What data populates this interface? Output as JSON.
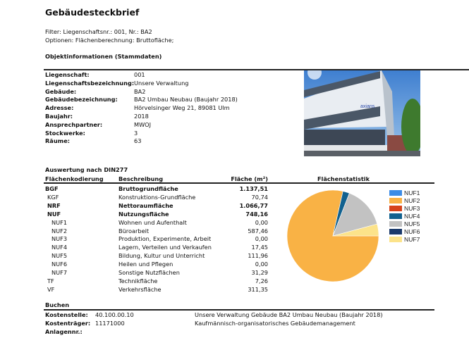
{
  "title": "Gebäudesteckbrief",
  "filter": "Filter: Liegenschaftsnr.: 001, Nr.: BA2",
  "options": "Optionen: Flächenberechnung: Bruttofläche;",
  "object_info": {
    "heading": "Objektinformationen (Stammdaten)",
    "rows": [
      {
        "label": "Liegenschaft:",
        "value": "001"
      },
      {
        "label": "Liegenschaftsbezeichnung:",
        "value": "Unsere Verwaltung"
      },
      {
        "label": "Gebäude:",
        "value": "BA2"
      },
      {
        "label": "Gebäudebezeichnung:",
        "value": "BA2 Umbau Neubau (Baujahr 2018)"
      },
      {
        "label": "Adresse:",
        "value": "Hörvelsinger Weg  21, 89081 Ulm"
      },
      {
        "label": "Baujahr:",
        "value": "2018"
      },
      {
        "label": "Ansprechpartner:",
        "value": "MWOJ"
      },
      {
        "label": "Stockwerke:",
        "value": "3"
      },
      {
        "label": "Räume:",
        "value": "63"
      }
    ],
    "photo_logo_text": "axians"
  },
  "evaluation": {
    "heading": "Auswertung nach DIN277",
    "columns": [
      "Flächenkodierung",
      "Beschreibung",
      "Fläche (m²)"
    ],
    "rows": [
      {
        "code": "BGF",
        "desc": "Bruttogrundfläche",
        "value": "1.137,51",
        "bold": true,
        "indent": 0
      },
      {
        "code": "KGF",
        "desc": "Konstruktions-Grundfläche",
        "value": "70,74",
        "bold": false,
        "indent": 1
      },
      {
        "code": "NRF",
        "desc": "Nettoraumfläche",
        "value": "1.066,77",
        "bold": true,
        "indent": 1
      },
      {
        "code": "NUF",
        "desc": "Nutzungsfläche",
        "value": "748,16",
        "bold": true,
        "indent": 2
      },
      {
        "code": "NUF1",
        "desc": "Wohnen und Aufenthalt",
        "value": "0,00",
        "bold": false,
        "indent": 3
      },
      {
        "code": "NUF2",
        "desc": "Büroarbeit",
        "value": "587,46",
        "bold": false,
        "indent": 3
      },
      {
        "code": "NUF3",
        "desc": "Produktion, Experimente, Arbeit",
        "value": "0,00",
        "bold": false,
        "indent": 3
      },
      {
        "code": "NUF4",
        "desc": "Lagern, Verteilen und Verkaufen",
        "value": "17,45",
        "bold": false,
        "indent": 3
      },
      {
        "code": "NUF5",
        "desc": "Bildung, Kultur und Unterricht",
        "value": "111,96",
        "bold": false,
        "indent": 3
      },
      {
        "code": "NUF6",
        "desc": "Heilen und Pflegen",
        "value": "0,00",
        "bold": false,
        "indent": 3
      },
      {
        "code": "NUF7",
        "desc": "Sonstige Nutzflächen",
        "value": "31,29",
        "bold": false,
        "indent": 3
      },
      {
        "code": "TF",
        "desc": "Technikfläche",
        "value": "7,26",
        "bold": false,
        "indent": 1
      },
      {
        "code": "VF",
        "desc": "Verkehrsfläche",
        "value": "311,35",
        "bold": false,
        "indent": 1
      }
    ]
  },
  "chart_data": {
    "type": "pie",
    "title": "Flächenstatistik",
    "legend_position": "right",
    "start": "3 o'clock, clockwise",
    "slices": [
      {
        "name": "NUF1",
        "value": 0.0,
        "color": "#3c8ce6"
      },
      {
        "name": "NUF2",
        "value": 587.46,
        "color": "#f9b245"
      },
      {
        "name": "NUF3",
        "value": 0.0,
        "color": "#d6421a"
      },
      {
        "name": "NUF4",
        "value": 17.45,
        "color": "#11618f"
      },
      {
        "name": "NUF5",
        "value": 111.96,
        "color": "#c2c2c2"
      },
      {
        "name": "NUF6",
        "value": 0.0,
        "color": "#1b3a6b"
      },
      {
        "name": "NUF7",
        "value": 31.29,
        "color": "#fce38a"
      }
    ]
  },
  "booking": {
    "heading": "Buchen",
    "rows": [
      {
        "label": "Kostenstelle:",
        "value": "40.100.00.10",
        "desc": "Unsere Verwaltung Gebäude BA2 Umbau Neubau (Baujahr 2018)"
      },
      {
        "label": "Kostenträger:",
        "value": "11171000",
        "desc": "Kaufmännisch-organisatorisches Gebäudemanagement"
      },
      {
        "label": "Anlagennr.:",
        "value": "",
        "desc": ""
      }
    ]
  }
}
